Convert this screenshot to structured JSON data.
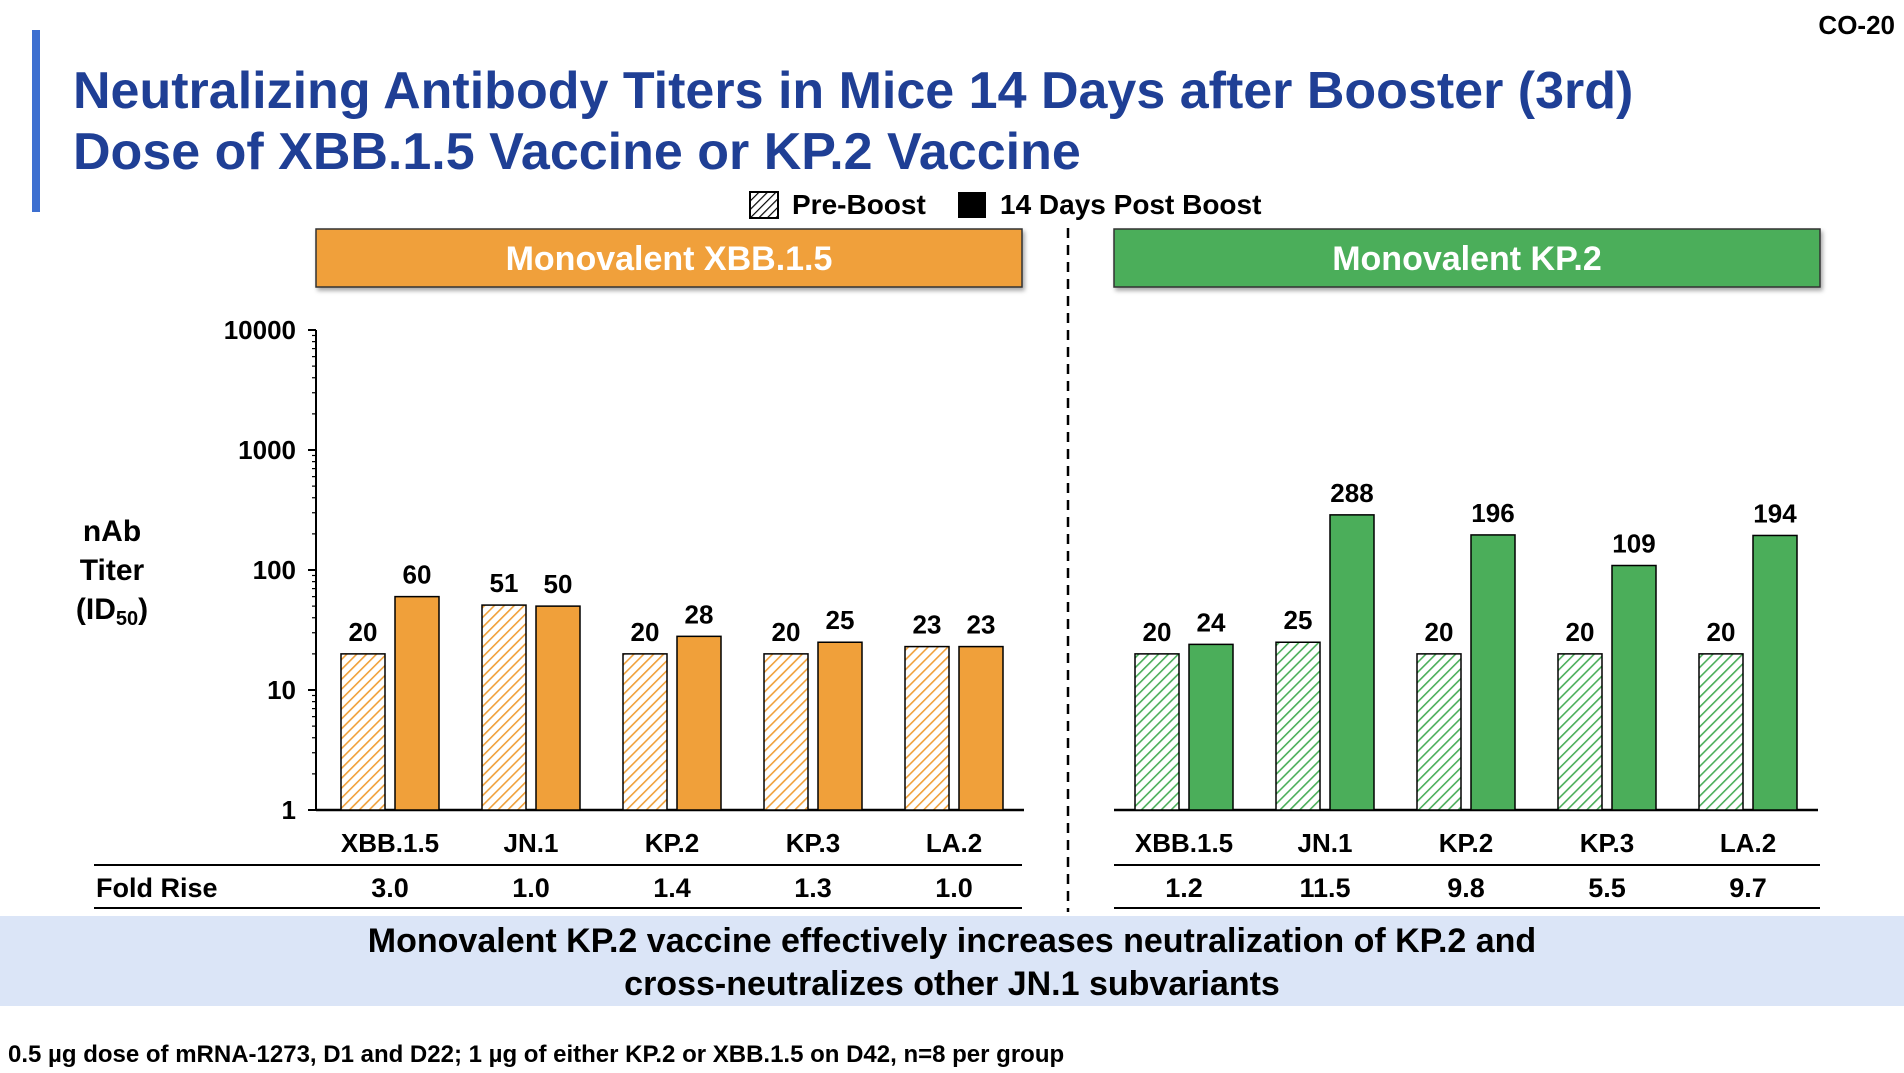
{
  "slide_id": "CO-20",
  "title_line1": "Neutralizing Antibody Titers in Mice 14 Days after Booster (3rd)",
  "title_line2": "Dose of XBB.1.5 Vaccine or KP.2 Vaccine",
  "legend": {
    "pre": "Pre-Boost",
    "post": "14 Days Post Boost"
  },
  "y_axis": {
    "line1": "nAb",
    "line2": "Titer",
    "line3_prefix": "(ID",
    "line3_sub": "50",
    "line3_suffix": ")"
  },
  "fold_rise_label": "Fold Rise",
  "conclusion_line1": "Monovalent KP.2 vaccine effectively increases neutralization of KP.2 and",
  "conclusion_line2": "cross-neutralizes other JN.1 subvariants",
  "footnote": "0.5 µg dose of mRNA-1273, D1 and D22; 1 µg of either KP.2 or XBB.1.5 on D42, n=8 per group",
  "colors": {
    "title": "#1f3f95",
    "accent_bar": "#3d6fd0",
    "xbb_panel": "#f0a03a",
    "kp2_panel": "#4bae5a",
    "banner_bg": "#dbe5f7"
  },
  "chart_data": [
    {
      "type": "bar",
      "panel": "Monovalent XBB.1.5",
      "scale": "log",
      "ylim": [
        1,
        10000
      ],
      "yticks": [
        "1",
        "10",
        "100",
        "1000",
        "10000"
      ],
      "categories": [
        "XBB.1.5",
        "JN.1",
        "KP.2",
        "KP.3",
        "LA.2"
      ],
      "series": [
        {
          "name": "Pre-Boost",
          "values": [
            20,
            51,
            20,
            20,
            23
          ]
        },
        {
          "name": "14 Days Post Boost",
          "values": [
            60,
            50,
            28,
            25,
            23
          ]
        }
      ],
      "fold_rise": [
        "3.0",
        "1.0",
        "1.4",
        "1.3",
        "1.0"
      ]
    },
    {
      "type": "bar",
      "panel": "Monovalent KP.2",
      "scale": "log",
      "ylim": [
        1,
        10000
      ],
      "categories": [
        "XBB.1.5",
        "JN.1",
        "KP.2",
        "KP.3",
        "LA.2"
      ],
      "series": [
        {
          "name": "Pre-Boost",
          "values": [
            20,
            25,
            20,
            20,
            20
          ]
        },
        {
          "name": "14 Days Post Boost",
          "values": [
            24,
            288,
            196,
            109,
            194
          ]
        }
      ],
      "fold_rise": [
        "1.2",
        "11.5",
        "9.8",
        "5.5",
        "9.7"
      ]
    }
  ]
}
